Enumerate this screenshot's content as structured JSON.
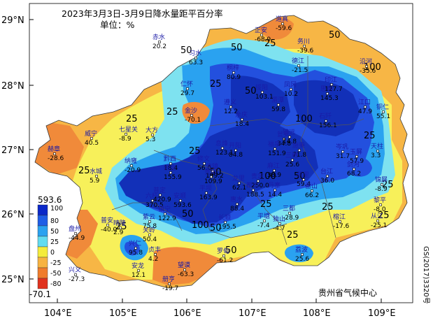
{
  "title": "2023年3月3日-3月9日降水量距平百分率",
  "unit": "单位：%",
  "credit": "贵州省气候中心",
  "map_number": "GS(2017)3320号",
  "axes": {
    "lat_labels": [
      "29°N",
      "28°N",
      "27°N",
      "26°N",
      "25°N"
    ],
    "lon_labels": [
      "104°E",
      "105°E",
      "106°E",
      "107°E",
      "108°E",
      "109°E"
    ]
  },
  "legend": {
    "max": "593.6",
    "min": "-70.1",
    "ticks": [
      "100",
      "80",
      "50",
      "25",
      "0",
      "-25",
      "-50",
      "-80"
    ],
    "colors": [
      "#0b28c8",
      "#1f5ee6",
      "#2aa2f0",
      "#62dcf0",
      "#f4ec3c",
      "#f7b341",
      "#f07c2c",
      "#e0321e"
    ]
  },
  "colors": {
    "very_wet": "#1230b8",
    "wet": "#2350de",
    "moist": "#2aa2f0",
    "slightly_moist": "#7ee2f0",
    "normal_dry": "#f7f05a",
    "dry": "#f7b645",
    "very_dry": "#f08a3a",
    "ocean": "#ffffff"
  },
  "contour_labels": [
    "25",
    "25",
    "50",
    "50",
    "25",
    "25",
    "25",
    "50",
    "50",
    "100",
    "50",
    "100",
    "50",
    "25",
    "100",
    "25",
    "25",
    "25",
    "50",
    "50",
    "100",
    "25",
    "25",
    "50",
    "25",
    "25"
  ],
  "stations": [
    {
      "name": "道真",
      "value": "-59.6"
    },
    {
      "name": "正安",
      "value": "-68.9"
    },
    {
      "name": "务川",
      "value": "-39.6"
    },
    {
      "name": "赤水",
      "value": "20.2"
    },
    {
      "name": "习水",
      "value": "63.3"
    },
    {
      "name": "桐梓",
      "value": "80.9"
    },
    {
      "name": "绥阳",
      "value": "103.1"
    },
    {
      "name": "凤冈",
      "value": "10.2"
    },
    {
      "name": "德江",
      "value": "-21.5"
    },
    {
      "name": "沿河",
      "value": "-35.6"
    },
    {
      "name": "印江",
      "value": "127.7"
    },
    {
      "name": "思南",
      "value": "145.3"
    },
    {
      "name": "仁怀",
      "value": "29.7"
    },
    {
      "name": "遵义",
      "value": "12.2"
    },
    {
      "name": "湄潭",
      "value": "59.8"
    },
    {
      "name": "江口",
      "value": "47.9"
    },
    {
      "name": "铜仁",
      "value": "55.1"
    },
    {
      "name": "石阡",
      "value": "156.1"
    },
    {
      "name": "金沙",
      "value": "-70.1"
    },
    {
      "name": "七星关",
      "value": "-8.9"
    },
    {
      "name": "大方",
      "value": "5.3"
    },
    {
      "name": "余庆",
      "value": "18.4"
    },
    {
      "name": "瓮安",
      "value": "34.8"
    },
    {
      "name": "息烽",
      "value": "123.1"
    },
    {
      "name": "镇远",
      "value": "14.8"
    },
    {
      "name": "威宁",
      "value": "40.5"
    },
    {
      "name": "赫章",
      "value": "-28.6"
    },
    {
      "name": "纳雍",
      "value": "-20.9"
    },
    {
      "name": "黔西",
      "value": "18.4"
    },
    {
      "name": "修文",
      "value": "56.0"
    },
    {
      "name": "开阳",
      "value": "84.8"
    },
    {
      "name": "福泉",
      "value": "151.9"
    },
    {
      "name": "施秉",
      "value": "71.8"
    },
    {
      "name": "岑巩",
      "value": "31.7"
    },
    {
      "name": "玉屏",
      "value": "57.9"
    },
    {
      "name": "三穗",
      "value": "25.6"
    },
    {
      "name": "天柱",
      "value": "3.3"
    },
    {
      "name": "剑河",
      "value": "68.2"
    },
    {
      "name": "台江",
      "value": "36.0"
    },
    {
      "name": "锦屏",
      "value": "-8.9"
    },
    {
      "name": "织金",
      "value": "155.9"
    },
    {
      "name": "清镇",
      "value": "199.2"
    },
    {
      "name": "六枝",
      "value": "370.5"
    },
    {
      "name": "水城",
      "value": "5.9"
    },
    {
      "name": "普定",
      "value": "420.9"
    },
    {
      "name": "安顺",
      "value": "593.6"
    },
    {
      "name": "平坝",
      "value": "163.9"
    },
    {
      "name": "贵阳",
      "value": "109.9"
    },
    {
      "name": "龙里",
      "value": "62.1"
    },
    {
      "name": "贵定",
      "value": "250.0"
    },
    {
      "name": "麻江",
      "value": "38.9"
    },
    {
      "name": "凯里",
      "value": "59.4"
    },
    {
      "name": "雷山",
      "value": "66.2"
    },
    {
      "name": "黎平",
      "value": "-8.0"
    },
    {
      "name": "丹寨",
      "value": "14.4"
    },
    {
      "name": "都匀",
      "value": "188.5"
    },
    {
      "name": "惠水",
      "value": "88.4"
    },
    {
      "name": "长顺",
      "value": "195.5"
    },
    {
      "name": "紫云",
      "value": "75.8"
    },
    {
      "name": "镇宁",
      "value": "122.9"
    },
    {
      "name": "关岭",
      "value": "50.4"
    },
    {
      "name": "盘州",
      "value": "-44.9"
    },
    {
      "name": "普安",
      "value": "-40.0"
    },
    {
      "name": "晴隆",
      "value": "2.9"
    },
    {
      "name": "贞丰",
      "value": "4.2"
    },
    {
      "name": "兴仁",
      "value": "95.8"
    },
    {
      "name": "兴义",
      "value": "-27.3"
    },
    {
      "name": "安龙",
      "value": "12.1"
    },
    {
      "name": "册亨",
      "value": "-19.7"
    },
    {
      "name": "望谟",
      "value": "-63.3"
    },
    {
      "name": "罗甸",
      "value": "-61.2"
    },
    {
      "name": "平塘",
      "value": "-7.4"
    },
    {
      "name": "独山",
      "value": "-4.7"
    },
    {
      "name": "三都",
      "value": "-28.9"
    },
    {
      "name": "榕江",
      "value": "-17.6"
    },
    {
      "name": "从江",
      "value": "-25.1"
    },
    {
      "name": "荔波",
      "value": "25.6"
    }
  ]
}
